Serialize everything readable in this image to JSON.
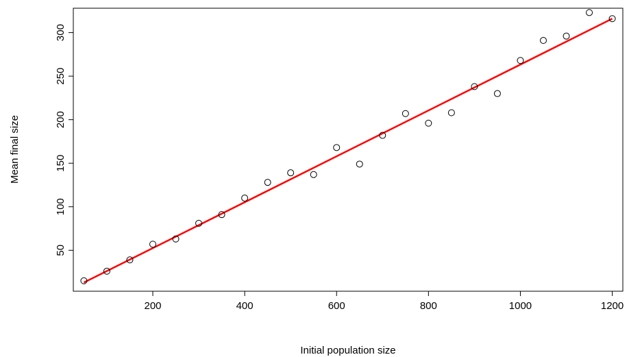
{
  "chart_data": {
    "type": "scatter",
    "title": "",
    "xlabel": "Initial population size",
    "ylabel": "Mean final size",
    "xlim": [
      27,
      1223
    ],
    "ylim": [
      3,
      328
    ],
    "xticks": [
      200,
      400,
      600,
      800,
      1000,
      1200
    ],
    "yticks": [
      50,
      100,
      150,
      200,
      250,
      300
    ],
    "grid": false,
    "legend": "none",
    "series": [
      {
        "type": "scatter",
        "marker": "open-circle",
        "color": "#000000",
        "x": [
          50,
          100,
          150,
          200,
          250,
          300,
          350,
          400,
          450,
          500,
          550,
          600,
          650,
          700,
          750,
          800,
          850,
          900,
          950,
          1000,
          1050,
          1100,
          1150,
          1200
        ],
        "y": [
          15,
          26,
          39,
          57,
          63,
          81,
          91,
          110,
          128,
          139,
          137,
          168,
          149,
          182,
          207,
          196,
          208,
          238,
          230,
          268,
          291,
          296,
          323,
          316
        ]
      },
      {
        "type": "line",
        "color": "#ff0000",
        "x": [
          50,
          1200
        ],
        "y": [
          13,
          316
        ]
      }
    ]
  }
}
